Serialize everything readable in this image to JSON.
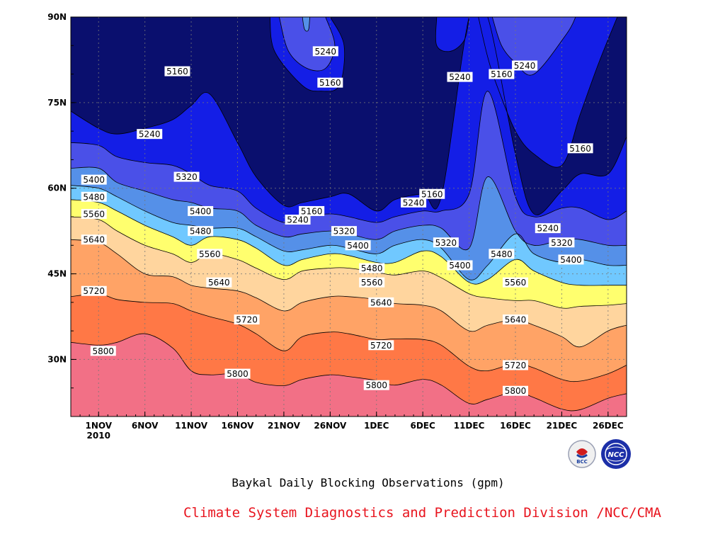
{
  "chart_data": {
    "type": "contour",
    "title": "",
    "xlabel": "",
    "ylabel": "",
    "x_range": [
      -3,
      57
    ],
    "y_range": [
      20,
      90
    ],
    "x_ticks": [
      {
        "day": 0,
        "label": "1NOV",
        "sub": "2010"
      },
      {
        "day": 5,
        "label": "6NOV",
        "sub": ""
      },
      {
        "day": 10,
        "label": "11NOV",
        "sub": ""
      },
      {
        "day": 15,
        "label": "16NOV",
        "sub": ""
      },
      {
        "day": 20,
        "label": "21NOV",
        "sub": ""
      },
      {
        "day": 25,
        "label": "26NOV",
        "sub": ""
      },
      {
        "day": 30,
        "label": "1DEC",
        "sub": ""
      },
      {
        "day": 35,
        "label": "6DEC",
        "sub": ""
      },
      {
        "day": 40,
        "label": "11DEC",
        "sub": ""
      },
      {
        "day": 45,
        "label": "16DEC",
        "sub": ""
      },
      {
        "day": 50,
        "label": "21DEC",
        "sub": ""
      },
      {
        "day": 55,
        "label": "26DEC",
        "sub": ""
      }
    ],
    "y_ticks": [
      {
        "lat": 30,
        "label": "30N"
      },
      {
        "lat": 45,
        "label": "45N"
      },
      {
        "lat": 60,
        "label": "60N"
      },
      {
        "lat": 75,
        "label": "75N"
      },
      {
        "lat": 90,
        "label": "90N"
      }
    ],
    "grid": true,
    "days": [
      -3,
      0,
      2,
      5,
      8,
      10,
      12,
      15,
      17,
      20,
      22,
      25,
      27,
      30,
      32,
      35,
      37,
      40,
      42,
      45,
      47,
      50,
      52,
      55,
      57
    ],
    "bands": [
      {
        "color": "#f27086",
        "upper": null
      },
      {
        "color": "#ff7846",
        "upper": 5800,
        "lat": [
          33,
          32.5,
          33,
          34.5,
          32,
          28,
          27.3,
          27.5,
          26,
          25.4,
          26.5,
          27.3,
          27,
          26.3,
          25.5,
          26.5,
          25.5,
          22.3,
          23,
          24.3,
          23.3,
          21.3,
          21.2,
          23.2,
          24
        ]
      },
      {
        "color": "#ffa366",
        "upper": 5720,
        "lat": [
          41,
          41.5,
          40.5,
          40,
          39.8,
          38.5,
          37.5,
          36.2,
          34.5,
          31.5,
          34,
          34.8,
          34.5,
          33.5,
          33.6,
          33.5,
          32.5,
          28.8,
          28,
          29.3,
          28.5,
          26.5,
          26.2,
          27.5,
          29
        ]
      },
      {
        "color": "#ffd59e",
        "upper": 5640,
        "lat": [
          51,
          50.5,
          48.5,
          45,
          44.5,
          43,
          42.5,
          42,
          40.8,
          38.5,
          40,
          41,
          41,
          40.5,
          39.8,
          39.5,
          38.5,
          35,
          36,
          37,
          36,
          34,
          32.2,
          35,
          36
        ]
      },
      {
        "color": "#ffff6e",
        "upper": 5560,
        "lat": [
          55,
          54.5,
          52.5,
          50,
          48.5,
          47,
          48.5,
          47.5,
          46,
          44,
          45.5,
          46,
          46,
          45.3,
          44.8,
          45.5,
          44.3,
          41.5,
          40.8,
          40.3,
          40.3,
          39,
          39.3,
          39.5,
          39.8
        ]
      },
      {
        "color": "#70c8ff",
        "upper": 5480,
        "lat": [
          58,
          57.5,
          56,
          53.5,
          51.5,
          50,
          51.5,
          51,
          49.5,
          46.5,
          47.5,
          48.5,
          48.2,
          47,
          47,
          49,
          48,
          43.5,
          44,
          47.5,
          45.5,
          43.5,
          43,
          43,
          43
        ]
      },
      {
        "color": "#5590e8",
        "upper": 5400,
        "lat": [
          60.5,
          60,
          58.5,
          56,
          54,
          53.5,
          53,
          53,
          51.5,
          49,
          49.2,
          50,
          49.5,
          48.5,
          50,
          51,
          49.5,
          44,
          46.5,
          52,
          48.5,
          47,
          47.5,
          46.5,
          46.5
        ]
      },
      {
        "color": "#4a50e8",
        "upper": 5320,
        "lat": [
          63.5,
          63.5,
          61,
          59.5,
          58,
          57.5,
          56.5,
          56,
          53.5,
          51.5,
          52,
          52.5,
          52,
          51,
          52.5,
          53.5,
          53,
          49.5,
          62,
          52.5,
          50,
          51,
          51,
          50,
          50
        ]
      },
      {
        "color": "#141ee6",
        "upper": 5240,
        "lat": [
          68,
          67.5,
          65.5,
          64.5,
          64,
          62.5,
          60.5,
          59.5,
          56.5,
          54,
          55,
          55.5,
          55,
          54,
          55,
          56,
          56,
          59,
          77,
          58.5,
          55,
          56.5,
          56.5,
          54.5,
          56
        ]
      },
      {
        "color": "#0a0f6e",
        "upper": 5160,
        "lat": [
          73.5,
          70.5,
          69.5,
          70.5,
          72,
          74.5,
          76.5,
          68,
          62,
          57,
          57.5,
          58.5,
          59,
          56,
          58,
          59,
          58.5,
          90,
          90,
          66,
          55.5,
          59.5,
          62.5,
          62.5,
          69
        ]
      }
    ],
    "blobs": [
      {
        "color": "#141ee6",
        "points": [
          [
            18.5,
            90
          ],
          [
            19,
            84
          ],
          [
            22,
            78
          ],
          [
            24,
            77
          ],
          [
            26,
            78
          ],
          [
            26.5,
            85
          ],
          [
            25,
            90
          ]
        ]
      },
      {
        "color": "#4a50e8",
        "points": [
          [
            19.5,
            90
          ],
          [
            20.5,
            84
          ],
          [
            22.5,
            81
          ],
          [
            24.5,
            81
          ],
          [
            25.5,
            85
          ],
          [
            24.5,
            90
          ]
        ]
      },
      {
        "color": "#5590e8",
        "points": [
          [
            22,
            90
          ],
          [
            22.2,
            88
          ],
          [
            22.5,
            87.5
          ],
          [
            22.7,
            88
          ],
          [
            22.8,
            90
          ]
        ]
      },
      {
        "color": "#141ee6",
        "points": [
          [
            36.5,
            90
          ],
          [
            36.5,
            85
          ],
          [
            38,
            84
          ],
          [
            39.5,
            86
          ],
          [
            40,
            90
          ]
        ]
      },
      {
        "color": "#141ee6",
        "points": [
          [
            41,
            90
          ],
          [
            42,
            83
          ],
          [
            43,
            78
          ],
          [
            45,
            70
          ],
          [
            47,
            66
          ],
          [
            50,
            64
          ],
          [
            52,
            73
          ],
          [
            54,
            82
          ],
          [
            56,
            90
          ]
        ]
      },
      {
        "color": "#4a50e8",
        "points": [
          [
            42.5,
            90
          ],
          [
            43.5,
            85
          ],
          [
            45,
            82
          ],
          [
            47,
            80
          ],
          [
            50.5,
            87
          ],
          [
            51.5,
            90
          ]
        ]
      }
    ],
    "contour_labels": [
      {
        "text": "5160",
        "day": 8.5,
        "lat": 80.5
      },
      {
        "text": "5240",
        "day": 5.5,
        "lat": 69.5
      },
      {
        "text": "5320",
        "day": 9.5,
        "lat": 62
      },
      {
        "text": "5400",
        "day": -0.5,
        "lat": 61.5
      },
      {
        "text": "5480",
        "day": -0.5,
        "lat": 58.5
      },
      {
        "text": "5560",
        "day": -0.5,
        "lat": 55.5
      },
      {
        "text": "5640",
        "day": -0.5,
        "lat": 51
      },
      {
        "text": "5720",
        "day": -0.5,
        "lat": 42
      },
      {
        "text": "5800",
        "day": 0.5,
        "lat": 31.5
      },
      {
        "text": "5400",
        "day": 11,
        "lat": 56
      },
      {
        "text": "5480",
        "day": 11,
        "lat": 52.5
      },
      {
        "text": "5560",
        "day": 12,
        "lat": 48.5
      },
      {
        "text": "5640",
        "day": 13,
        "lat": 43.5
      },
      {
        "text": "5720",
        "day": 16,
        "lat": 37
      },
      {
        "text": "5800",
        "day": 15,
        "lat": 27.5
      },
      {
        "text": "5160",
        "day": 23,
        "lat": 56
      },
      {
        "text": "5240",
        "day": 21.5,
        "lat": 54.5
      },
      {
        "text": "5240",
        "day": 24.5,
        "lat": 84
      },
      {
        "text": "5160",
        "day": 25,
        "lat": 78.5
      },
      {
        "text": "5320",
        "day": 26.5,
        "lat": 52.5
      },
      {
        "text": "5400",
        "day": 28,
        "lat": 50
      },
      {
        "text": "5480",
        "day": 29.5,
        "lat": 46
      },
      {
        "text": "5560",
        "day": 29.5,
        "lat": 43.5
      },
      {
        "text": "5640",
        "day": 30.5,
        "lat": 40
      },
      {
        "text": "5720",
        "day": 30.5,
        "lat": 32.5
      },
      {
        "text": "5800",
        "day": 30,
        "lat": 25.5
      },
      {
        "text": "5240",
        "day": 34,
        "lat": 57.5
      },
      {
        "text": "5160",
        "day": 36,
        "lat": 59
      },
      {
        "text": "5320",
        "day": 37.5,
        "lat": 50.5
      },
      {
        "text": "5400",
        "day": 39,
        "lat": 46.5
      },
      {
        "text": "5240",
        "day": 39,
        "lat": 79.5
      },
      {
        "text": "5160",
        "day": 43.5,
        "lat": 80
      },
      {
        "text": "5240",
        "day": 46,
        "lat": 81.5
      },
      {
        "text": "5480",
        "day": 43.5,
        "lat": 48.5
      },
      {
        "text": "5560",
        "day": 45,
        "lat": 43.5
      },
      {
        "text": "5640",
        "day": 45,
        "lat": 37
      },
      {
        "text": "5720",
        "day": 45,
        "lat": 29
      },
      {
        "text": "5800",
        "day": 45,
        "lat": 24.5
      },
      {
        "text": "5160",
        "day": 52,
        "lat": 67
      },
      {
        "text": "5240",
        "day": 48.5,
        "lat": 53
      },
      {
        "text": "5320",
        "day": 50,
        "lat": 50.5
      },
      {
        "text": "5400",
        "day": 51,
        "lat": 47.5
      }
    ]
  },
  "caption": "Baykal Daily Blocking Observations (gpm)",
  "credit": "Climate System Diagnostics and Prediction Division /NCC/CMA",
  "logos": {
    "bcc": "BCC",
    "ncc": "NCC"
  },
  "colors": {
    "credit": "#e8141e"
  }
}
